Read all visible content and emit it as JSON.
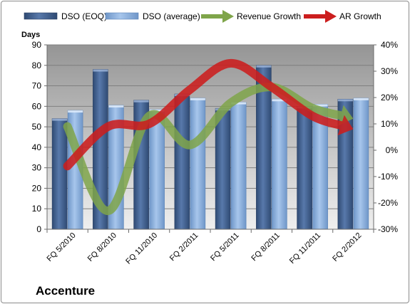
{
  "chart_data": {
    "type": "bar",
    "title": "Accenture",
    "ylabel_left": "Days",
    "ylim_left": [
      0,
      90
    ],
    "yticks_left": [
      "0",
      "10",
      "20",
      "30",
      "40",
      "50",
      "60",
      "70",
      "80",
      "90"
    ],
    "ylim_right": [
      -30,
      40
    ],
    "yticks_right": [
      "-30%",
      "-20%",
      "-10%",
      "0%",
      "10%",
      "20%",
      "30%",
      "40%"
    ],
    "categories": [
      "FQ 5/2010",
      "FQ 8/2010",
      "FQ 11/2010",
      "FQ 2/2011",
      "FQ 5/2011",
      "FQ 8/2011",
      "FQ 11/2011",
      "FQ 2/2012"
    ],
    "series": [
      {
        "name": "DSO (EOQ)",
        "kind": "bar",
        "axis": "left",
        "values": [
          54,
          78,
          63,
          66,
          59,
          80,
          60,
          63.5
        ]
      },
      {
        "name": "DSO (average)",
        "kind": "bar",
        "axis": "left",
        "values": [
          58,
          60.5,
          58.5,
          64,
          62,
          63.5,
          61,
          64
        ]
      },
      {
        "name": "Revenue Growth",
        "kind": "arrow",
        "axis": "right",
        "values": [
          9,
          -23,
          13,
          2,
          18,
          24,
          16,
          12
        ]
      },
      {
        "name": "AR Growth",
        "kind": "arrow",
        "axis": "right",
        "values": [
          -6,
          9,
          10,
          23,
          33,
          24,
          13,
          8
        ]
      }
    ],
    "grid": true,
    "legend_position": "top",
    "colors": {
      "plot_background_top": "#959595",
      "plot_background_bottom": "#efefef",
      "bar_eoq": "#3f5f8f",
      "bar_average": "#80a7d9",
      "revenue_growth": "#7fa54a",
      "ar_growth": "#cc1e1e"
    }
  }
}
